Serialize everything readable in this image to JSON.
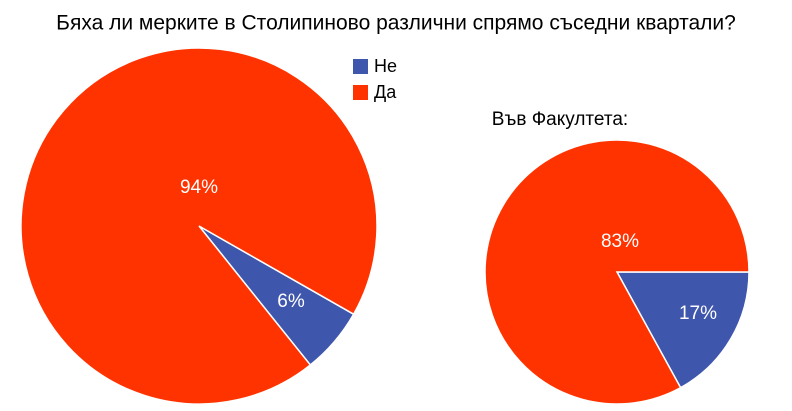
{
  "chart_data": [
    {
      "type": "pie",
      "title": "Бяха ли мерките в Столипиново различни спрямо съседни квартали?",
      "categories": [
        "Не",
        "Да"
      ],
      "values": [
        6,
        94
      ],
      "value_labels": [
        "6%",
        "94%"
      ],
      "colors": [
        "#3e56ab",
        "#ff3300"
      ]
    },
    {
      "type": "pie",
      "title": "Във Факултета:",
      "values": [
        17,
        83
      ],
      "value_labels": [
        "17%",
        "83%"
      ],
      "colors": [
        "#3e56ab",
        "#ff3300"
      ]
    }
  ]
}
